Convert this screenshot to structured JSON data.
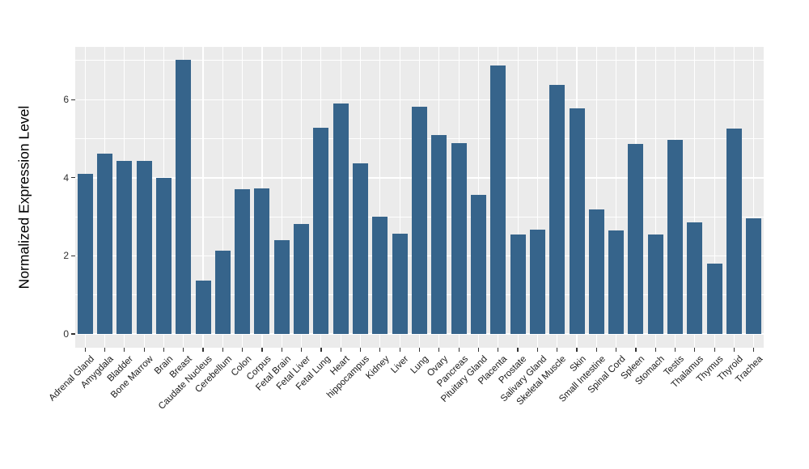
{
  "chart_data": {
    "type": "bar",
    "title": "",
    "xlabel": "",
    "ylabel": "Normalized Expression Level",
    "categories": [
      "Adrenal Gland",
      "Amygdala",
      "Bladder",
      "Bone Marrow",
      "Brain",
      "Breast",
      "Caudate Nucleus",
      "Cerebellum",
      "Colon",
      "Corpus",
      "Fetal Brain",
      "Fetal Liver",
      "Fetal Lung",
      "Heart",
      "hippocampus",
      "Kidney",
      "Liver",
      "Lung",
      "Ovary",
      "Pancreas",
      "Pituitary Gland",
      "Placenta",
      "Prostate",
      "Salivary Gland",
      "Skeletal Muscle",
      "Skin",
      "Small Intestine",
      "Spinal Cord",
      "Spleen",
      "Stomach",
      "Testis",
      "Thalamus",
      "Thymus",
      "Thyroid",
      "Trachea"
    ],
    "values": [
      4.1,
      4.61,
      4.43,
      4.44,
      3.99,
      7.01,
      1.37,
      2.13,
      3.7,
      3.72,
      2.4,
      2.81,
      5.28,
      5.9,
      4.36,
      3.0,
      2.57,
      5.82,
      5.09,
      4.88,
      3.56,
      6.87,
      2.54,
      2.68,
      6.37,
      5.77,
      3.19,
      2.66,
      4.87,
      2.54,
      4.97,
      2.85,
      1.8,
      5.26,
      2.96
    ],
    "yticks": [
      0,
      2,
      4,
      6
    ],
    "yticks_minor": [
      1,
      3,
      5,
      7
    ],
    "ylim": [
      -0.35,
      7.35
    ],
    "grid": "on",
    "legend": "none",
    "bar_color": "#36648b",
    "panel_bg": "#ebebeb",
    "grid_color": "#ffffff",
    "tick_label_color": "#303030",
    "axis_title_color": "#000000"
  }
}
